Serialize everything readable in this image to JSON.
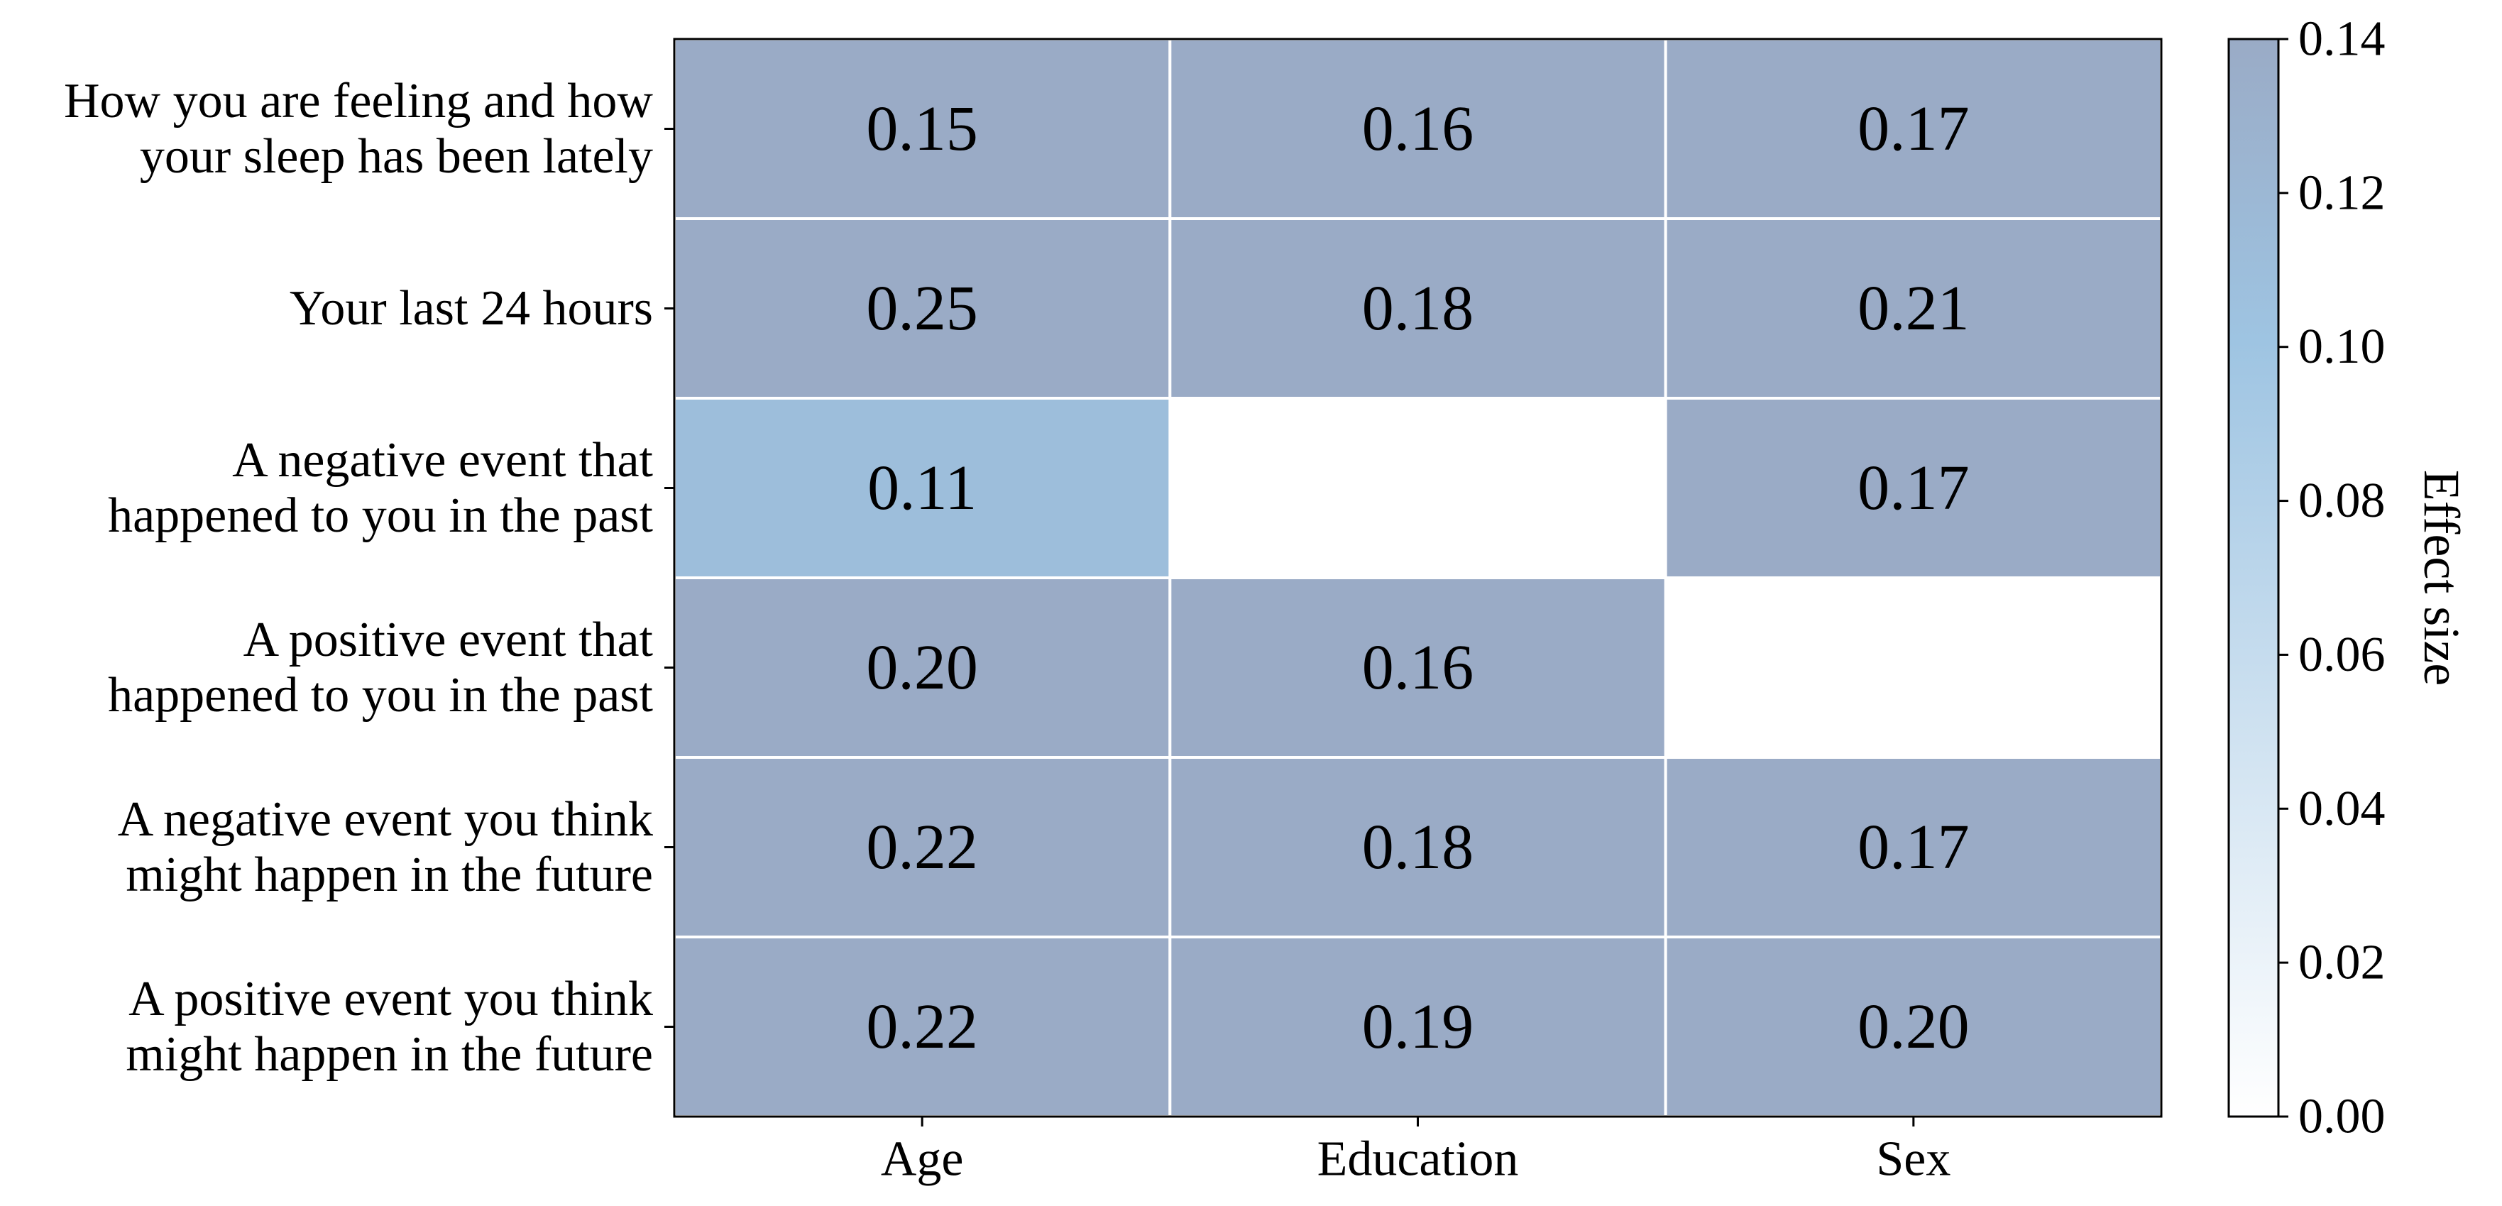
{
  "chart_data": {
    "type": "heatmap",
    "rows": [
      [
        "How you are feeling and how",
        "your sleep has been lately"
      ],
      [
        "Your last 24 hours"
      ],
      [
        "A negative event that",
        "happened to you in the past"
      ],
      [
        "A positive event that",
        "happened to you in the past"
      ],
      [
        "A negative event you think",
        "might happen in the future"
      ],
      [
        "A positive event you think",
        "might happen in the future"
      ]
    ],
    "columns": [
      "Age",
      "Education",
      "Sex"
    ],
    "values": [
      [
        0.15,
        0.16,
        0.17
      ],
      [
        0.25,
        0.18,
        0.21
      ],
      [
        0.11,
        null,
        0.17
      ],
      [
        0.2,
        0.16,
        null
      ],
      [
        0.22,
        0.18,
        0.17
      ],
      [
        0.22,
        0.19,
        0.2
      ]
    ],
    "cell_labels": [
      [
        "0.15",
        "0.16",
        "0.17"
      ],
      [
        "0.25",
        "0.18",
        "0.21"
      ],
      [
        "0.11",
        "",
        "0.17"
      ],
      [
        "0.20",
        "0.16",
        ""
      ],
      [
        "0.22",
        "0.18",
        "0.17"
      ],
      [
        "0.22",
        "0.19",
        "0.20"
      ]
    ],
    "colorbar": {
      "label": "Effect size",
      "range": [
        0.0,
        0.14
      ],
      "ticks": [
        "0.00",
        "0.02",
        "0.04",
        "0.06",
        "0.08",
        "0.10",
        "0.12",
        "0.14"
      ],
      "colors": [
        "#ffffff",
        "#9ec4e2",
        "#9aabc6"
      ]
    },
    "missing_color": "#ffffff",
    "grid": false
  }
}
